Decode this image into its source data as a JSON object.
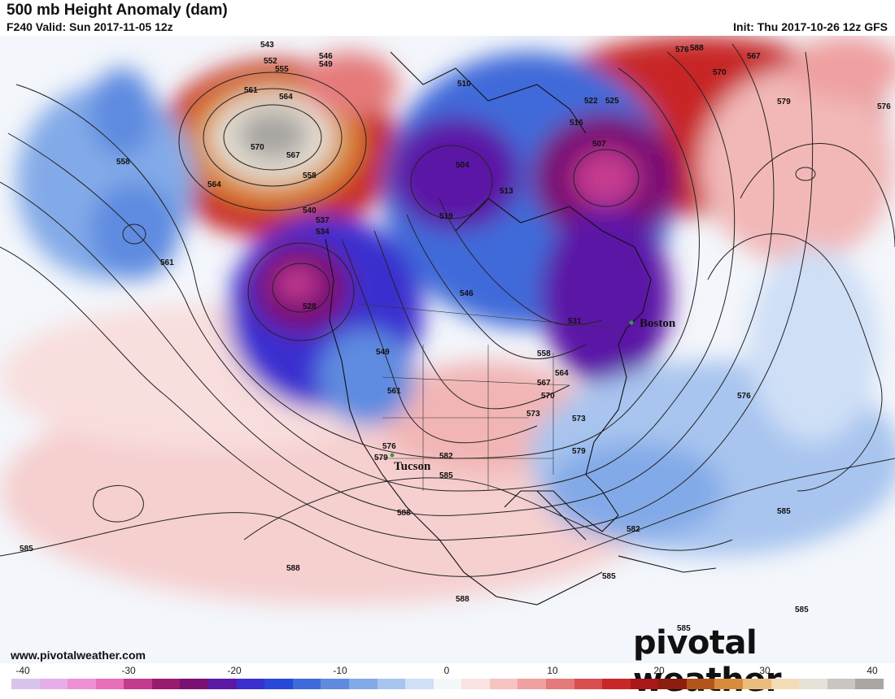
{
  "header": {
    "title": "500 mb Height Anomaly (dam)",
    "valid": "F240 Valid: Sun 2017-11-05 12z",
    "init": "Init: Thu 2017-10-26 12z GFS"
  },
  "footer": {
    "website": "www.pivotalweather.com",
    "logo_text": "pivotal weather"
  },
  "colorbar": {
    "ticks": [
      "-40",
      "-30",
      "-20",
      "-10",
      "0",
      "10",
      "20",
      "30",
      "40"
    ],
    "colors": [
      "#d9c4ee",
      "#e6aee8",
      "#ef8fd4",
      "#e86eb8",
      "#c43a8f",
      "#9a1a6e",
      "#7a0f74",
      "#5b18a6",
      "#3a2fcf",
      "#2848d8",
      "#3f6ad9",
      "#5e8be0",
      "#83aae8",
      "#a8c5ef",
      "#cfdff6",
      "#f4f8fb",
      "#fbe3e3",
      "#f6c3c3",
      "#efa0a0",
      "#e57a7a",
      "#d94e4e",
      "#c82727",
      "#a81818",
      "#8e1c0f",
      "#b4541a",
      "#d98a3a",
      "#ecbc7e",
      "#f3dcb6",
      "#e7e2d7",
      "#c9c6c2",
      "#a9a6a3"
    ]
  },
  "cities": [
    {
      "name": "Boston"
    },
    {
      "name": "Tucson"
    }
  ],
  "contour_labels": [
    "543",
    "546",
    "549",
    "552",
    "555",
    "561",
    "564",
    "570",
    "567",
    "558",
    "540",
    "537",
    "534",
    "528",
    "510",
    "507",
    "504",
    "513",
    "516",
    "519",
    "522",
    "525",
    "531",
    "573",
    "576",
    "579",
    "582",
    "585",
    "588",
    "546",
    "549",
    "558",
    "561",
    "564",
    "567",
    "570",
    "573",
    "576",
    "576",
    "579",
    "582",
    "585",
    "585",
    "585",
    "585",
    "588",
    "588",
    "588",
    "585",
    "558",
    "564",
    "567",
    "570",
    "579",
    "576",
    "561"
  ],
  "colors": {
    "positive_anomaly": "#d72b2b",
    "negative_anomaly": "#2a45d6",
    "neutral": "#ffffff"
  }
}
